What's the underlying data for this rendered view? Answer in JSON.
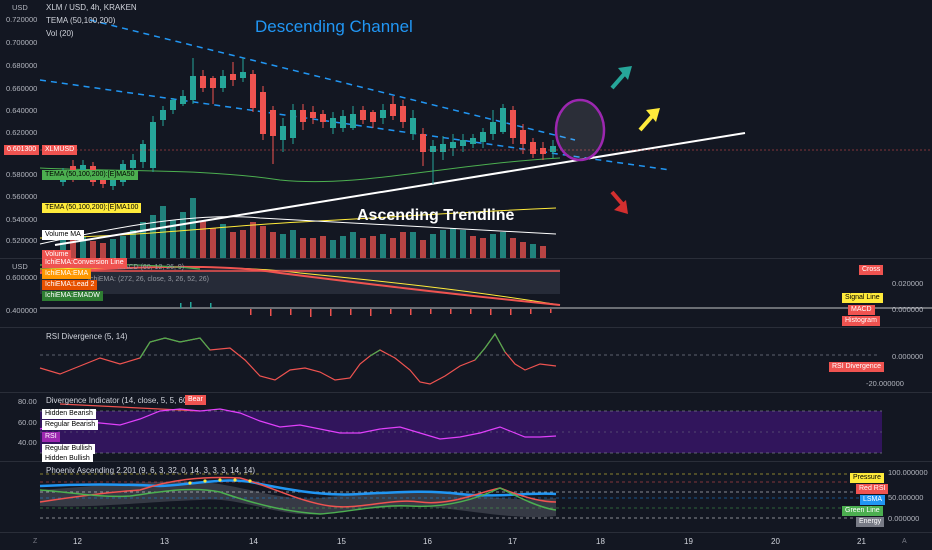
{
  "header": {
    "symbol_line": "XLM / USD, 4h, KRAKEN",
    "indicator_1": "TEMA (50,100,200)",
    "indicator_2": "Vol (20)",
    "currency": "USD"
  },
  "main_pane": {
    "price_axis": [
      "0.720000",
      "0.700000",
      "0.680000",
      "0.660000",
      "0.640000",
      "0.620000",
      "0.601300",
      "0.580000",
      "0.560000",
      "0.540000",
      "0.520000"
    ],
    "current_price": "0.601300",
    "xlmusd_tag": "XLMUSD",
    "tema_tag_1": "TEMA (50,100,200):[E]MA50",
    "tema_tag_2": "TEMA (50,100,200):[E]MA100",
    "volume_ma_tag": "Volume MA",
    "volume_tag": "Volume",
    "title_annotation": "Descending Channel",
    "trendline_annotation": "Ascending Trendline"
  },
  "ichimoku_pane": {
    "currency": "USD",
    "axis_left": [
      "0.600000",
      "0.400000"
    ],
    "axis_right": [
      "0.020000",
      "0.000000"
    ],
    "header_partial": "MACD (60, 12, 26, 9)",
    "header_partial_2": "IchiEMA: (272, 26, close, 3, 26, 52, 26)",
    "tags": [
      "IchiEMA:Conversion Line",
      "IchiEMA:EMA",
      "IchiEMA:Lead 2",
      "IchiEMA:EMADW"
    ],
    "right_tags": [
      "Cross",
      "Signal Line",
      "MACD",
      "Histogram"
    ]
  },
  "rsi_pane": {
    "title": "RSI Divergence (5, 14)",
    "axis": [
      "0.000000",
      "-20.000000"
    ],
    "tag": "RSI Divergence"
  },
  "divergence_pane": {
    "title": "Divergence Indicator (14, close, 5, 5, 60, 1",
    "bear_tag": "Bear",
    "axis": [
      "80.00",
      "60.00",
      "40.00"
    ],
    "tags": [
      "Hidden Bearish",
      "Regular Bearish",
      "RSI",
      "Regular Bullish",
      "Hidden Bullish"
    ]
  },
  "phoenix_pane": {
    "title": "Phoenix Ascending 2.201 (9, 6, 3, 32, 0, 14, 3, 3, 3, 14, 14)",
    "axis": [
      "100.000000",
      "50.000000",
      "0.000000"
    ],
    "tags": [
      "Pressure",
      "Red RSI",
      "LSMA",
      "Green Line",
      "Energy"
    ]
  },
  "time_axis": [
    "12",
    "13",
    "14",
    "15",
    "16",
    "17",
    "18",
    "19",
    "20",
    "21"
  ],
  "bottom_left": "Z",
  "bottom_right": "A",
  "colors": {
    "up": "#26a69a",
    "down": "#ef5350",
    "background": "#131722",
    "channel": "#2196f3",
    "trendline": "#ffffff"
  },
  "annotations": {
    "arrow_up_left": "teal arrow",
    "arrow_up_right": "yellow arrow",
    "arrow_down": "red arrow",
    "circle": "purple circle"
  }
}
